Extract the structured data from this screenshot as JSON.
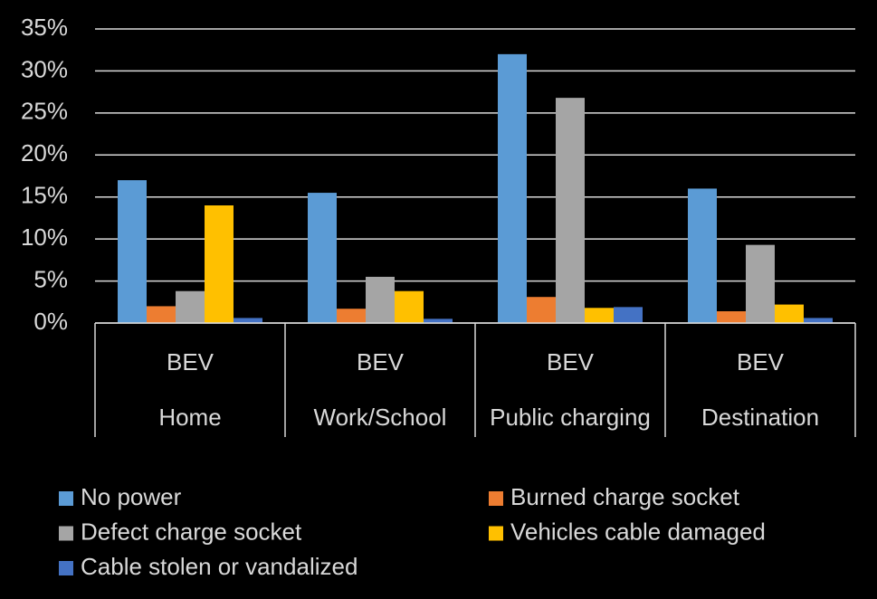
{
  "chart_data": {
    "type": "bar",
    "categories": [
      "Home",
      "Work/School",
      "Public charging",
      "Destination"
    ],
    "subcategories": [
      "BEV",
      "BEV",
      "BEV",
      "BEV"
    ],
    "series": [
      {
        "name": "No power",
        "color": "#5b9bd5",
        "values": [
          17,
          15.5,
          32,
          16
        ]
      },
      {
        "name": "Burned charge socket",
        "color": "#ed7d31",
        "values": [
          2,
          1.7,
          3.1,
          1.4
        ]
      },
      {
        "name": "Defect charge socket",
        "color": "#a5a5a5",
        "values": [
          3.8,
          5.5,
          26.8,
          9.3
        ]
      },
      {
        "name": "Vehicles cable damaged",
        "color": "#ffc000",
        "values": [
          14,
          3.8,
          1.8,
          2.2
        ]
      },
      {
        "name": "Cable stolen or vandalized",
        "color": "#4472c4",
        "values": [
          0.6,
          0.5,
          1.9,
          0.6
        ]
      }
    ],
    "ylim": [
      0,
      35
    ],
    "yticks": [
      {
        "value": 0,
        "label": "0%"
      },
      {
        "value": 5,
        "label": "5%"
      },
      {
        "value": 10,
        "label": "10%"
      },
      {
        "value": 15,
        "label": "15%"
      },
      {
        "value": 20,
        "label": "20%"
      },
      {
        "value": 25,
        "label": "25%"
      },
      {
        "value": 30,
        "label": "30%"
      },
      {
        "value": 35,
        "label": "35%"
      }
    ],
    "grid": true,
    "legend": "bottom"
  }
}
